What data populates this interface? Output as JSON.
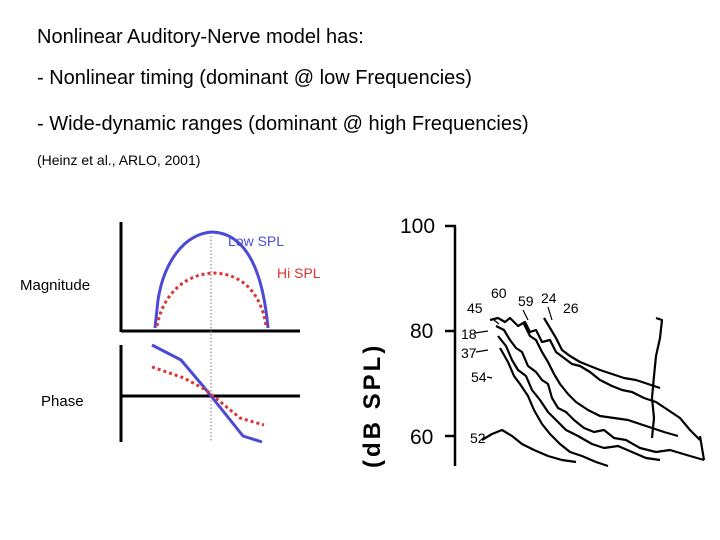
{
  "slide": {
    "title": "Nonlinear Auditory-Nerve model has:",
    "bullets": [
      "- Nonlinear timing (dominant @ low Frequencies)",
      "- Wide-dynamic ranges (dominant @ high Frequencies)"
    ],
    "citation": "(Heinz et al., ARLO, 2001)"
  },
  "schematic": {
    "magnitude_label": "Magnitude",
    "phase_label": "Phase",
    "low_spl_label": "Low SPL",
    "hi_spl_label": "Hi SPL",
    "colors": {
      "low_spl": "#4a4ad6",
      "hi_spl": "#dd3333"
    }
  },
  "threshold_figure": {
    "y_axis_label": "(dB SPL)",
    "y_tick_labels": [
      "100",
      "80",
      "60"
    ],
    "curve_labels": [
      "60",
      "59",
      "24",
      "45",
      "26",
      "18",
      "37",
      "54",
      "52"
    ]
  }
}
